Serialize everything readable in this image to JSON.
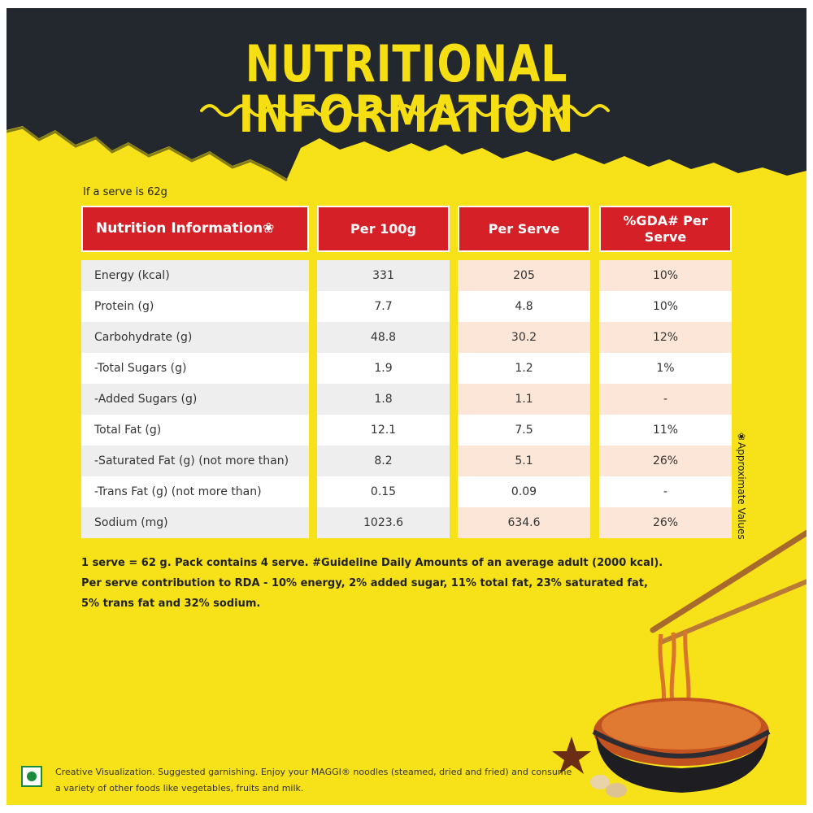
{
  "header": {
    "title": "NUTRITIONAL INFORMATION"
  },
  "serve_note": "If a serve is 62g",
  "table": {
    "headers": [
      "Nutrition Information❀",
      "Per 100g",
      "Per Serve",
      "%GDA# Per Serve"
    ],
    "rows": [
      {
        "name": "Energy (kcal)",
        "per100": "331",
        "perServe": "205",
        "gda": "10%"
      },
      {
        "name": "Protein (g)",
        "per100": "7.7",
        "perServe": "4.8",
        "gda": "10%"
      },
      {
        "name": "Carbohydrate (g)",
        "per100": "48.8",
        "perServe": "30.2",
        "gda": "12%"
      },
      {
        "name": "-Total Sugars (g)",
        "per100": "1.9",
        "perServe": "1.2",
        "gda": "1%"
      },
      {
        "name": "-Added Sugars (g)",
        "per100": "1.8",
        "perServe": "1.1",
        "gda": "-"
      },
      {
        "name": "Total Fat (g)",
        "per100": "12.1",
        "perServe": "7.5",
        "gda": "11%"
      },
      {
        "name": "-Saturated Fat (g) (not more than)",
        "per100": "8.2",
        "perServe": "5.1",
        "gda": "26%"
      },
      {
        "name": "-Trans Fat (g) (not more than)",
        "per100": "0.15",
        "perServe": "0.09",
        "gda": "-"
      },
      {
        "name": "Sodium (mg)",
        "per100": "1023.6",
        "perServe": "634.6",
        "gda": "26%"
      }
    ]
  },
  "side_note": "❀Approximate Values",
  "footnotes": [
    "1 serve = 62 g. Pack contains 4 serve. #Guideline Daily Amounts of an average adult  (2000 kcal).",
    "Per serve contribution to RDA - 10% energy, 2% added sugar, 11% total fat, 23% saturated fat,",
    "5% trans fat and 32% sodium."
  ],
  "disclaimer": "Creative Visualization. Suggested garnishing. Enjoy your MAGGI® noodles (steamed, dried and fried) and consume a variety of other foods like vegetables, fruits and milk.",
  "colors": {
    "background_yellow": "#f7e21a",
    "dark_band": "#23272e",
    "header_red": "#d62027",
    "title_yellow": "#f5de12",
    "veg_green": "#1a8a3b"
  },
  "icons": [
    "veg-mark-icon",
    "noodle-bowl-image",
    "chopsticks-image",
    "star-anise-image",
    "garlic-image",
    "squiggle-underline-icon"
  ]
}
